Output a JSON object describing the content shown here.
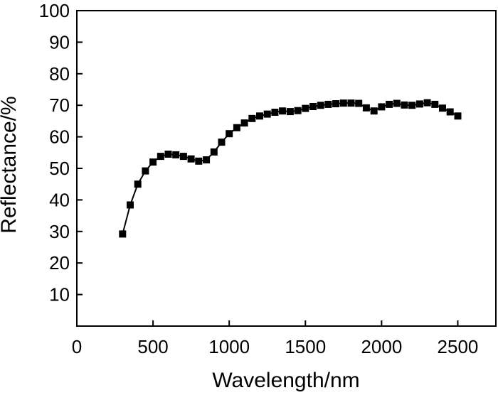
{
  "chart_data": {
    "type": "line",
    "title": "",
    "xlabel": "Wavelength/nm",
    "ylabel": "Reflectance/%",
    "xlim": [
      0,
      2750
    ],
    "ylim": [
      0,
      100
    ],
    "xticks": [
      0,
      500,
      1000,
      1500,
      2000,
      2500
    ],
    "yticks": [
      10,
      20,
      30,
      40,
      50,
      60,
      70,
      80,
      90,
      100
    ],
    "grid": false,
    "legend": "none",
    "marker": "square",
    "color": "#000000",
    "series": [
      {
        "x": [
          300,
          350,
          400,
          450,
          500,
          550,
          600,
          650,
          700,
          750,
          800,
          850,
          900,
          950,
          1000,
          1050,
          1100,
          1150,
          1200,
          1250,
          1300,
          1350,
          1400,
          1450,
          1500,
          1550,
          1600,
          1650,
          1700,
          1750,
          1800,
          1850,
          1900,
          1950,
          2000,
          2050,
          2100,
          2150,
          2200,
          2250,
          2300,
          2350,
          2400,
          2450,
          2500
        ],
        "values": [
          29.2,
          38.4,
          45.0,
          49.2,
          52.0,
          53.8,
          54.5,
          54.3,
          53.8,
          53.0,
          52.3,
          52.7,
          55.2,
          58.3,
          61.0,
          62.9,
          64.4,
          65.8,
          66.6,
          67.2,
          67.8,
          68.2,
          68.0,
          68.3,
          69.0,
          69.6,
          70.0,
          70.3,
          70.5,
          70.7,
          70.7,
          70.6,
          69.2,
          68.2,
          69.5,
          70.3,
          70.6,
          70.1,
          70.0,
          70.4,
          70.8,
          70.3,
          69.1,
          67.9,
          66.6
        ]
      }
    ]
  }
}
